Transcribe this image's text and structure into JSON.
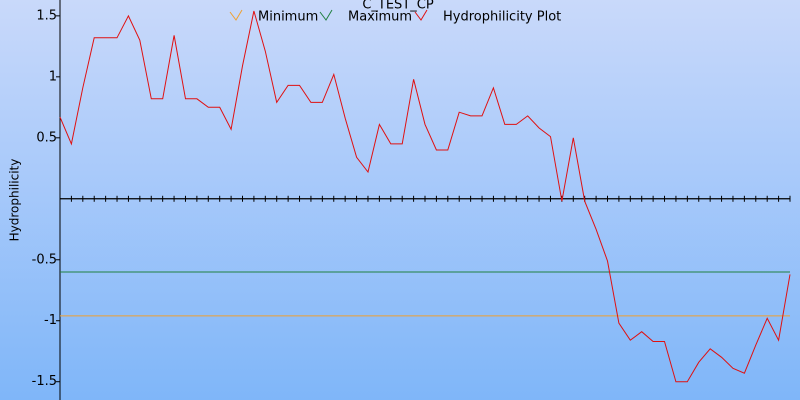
{
  "chart_data": {
    "type": "line",
    "title": "C_TEST_CP",
    "y_label": "Hydrophilicity",
    "categories": [
      null,
      null,
      null,
      null,
      null,
      null,
      null,
      null,
      null,
      null,
      null,
      null,
      null,
      null,
      null,
      null,
      null,
      null,
      null,
      null,
      null,
      null,
      null,
      null,
      null,
      null,
      null,
      null,
      null,
      null,
      null,
      null,
      null,
      null,
      null,
      null,
      null,
      null,
      null,
      null,
      null,
      null,
      null,
      null,
      null,
      null,
      null,
      null,
      null,
      null,
      null,
      null,
      null,
      null,
      null,
      null,
      null,
      null,
      null,
      null,
      null,
      null,
      null,
      null,
      null
    ],
    "series": [
      {
        "name": "Minimum",
        "color": "#f0a030",
        "values": [
          -0.96,
          -0.96,
          -0.96,
          -0.96,
          -0.96,
          -0.96,
          -0.96,
          -0.96,
          -0.96,
          -0.96,
          -0.96,
          -0.96,
          -0.96,
          -0.96,
          -0.96,
          -0.96,
          -0.96,
          -0.96,
          -0.96,
          -0.96,
          -0.96,
          -0.96,
          -0.96,
          -0.96,
          -0.96,
          -0.96,
          -0.96,
          -0.96,
          -0.96,
          -0.96,
          -0.96,
          -0.96,
          -0.96,
          -0.96,
          -0.96,
          -0.96,
          -0.96,
          -0.96,
          -0.96,
          -0.96,
          -0.96,
          -0.96,
          -0.96,
          -0.96,
          -0.96,
          -0.96,
          -0.96,
          -0.96,
          -0.96,
          -0.96,
          -0.96,
          -0.96,
          -0.96,
          -0.96,
          -0.96,
          -0.96,
          -0.96,
          -0.96,
          -0.96,
          -0.96,
          -0.96,
          -0.96,
          -0.96,
          -0.96,
          -0.96
        ]
      },
      {
        "name": "Maximum",
        "color": "#208040",
        "values": [
          -0.6,
          -0.6,
          -0.6,
          -0.6,
          -0.6,
          -0.6,
          -0.6,
          -0.6,
          -0.6,
          -0.6,
          -0.6,
          -0.6,
          -0.6,
          -0.6,
          -0.6,
          -0.6,
          -0.6,
          -0.6,
          -0.6,
          -0.6,
          -0.6,
          -0.6,
          -0.6,
          -0.6,
          -0.6,
          -0.6,
          -0.6,
          -0.6,
          -0.6,
          -0.6,
          -0.6,
          -0.6,
          -0.6,
          -0.6,
          -0.6,
          -0.6,
          -0.6,
          -0.6,
          -0.6,
          -0.6,
          -0.6,
          -0.6,
          -0.6,
          -0.6,
          -0.6,
          -0.6,
          -0.6,
          -0.6,
          -0.6,
          -0.6,
          -0.6,
          -0.6,
          -0.6,
          -0.6,
          -0.6,
          -0.6,
          -0.6,
          -0.6,
          -0.6,
          -0.6,
          -0.6,
          -0.6,
          -0.6,
          -0.6,
          -0.6
        ]
      },
      {
        "name": "Hydrophilicity Plot",
        "color": "#e01010",
        "values": [
          0.67,
          0.45,
          0.91,
          1.32,
          1.32,
          1.32,
          1.5,
          1.3,
          0.82,
          0.82,
          1.34,
          0.82,
          0.82,
          0.75,
          0.75,
          0.57,
          1.09,
          1.54,
          1.21,
          0.79,
          0.93,
          0.93,
          0.79,
          0.79,
          1.02,
          0.66,
          0.34,
          0.22,
          0.61,
          0.45,
          0.45,
          0.98,
          0.61,
          0.4,
          0.4,
          0.71,
          0.68,
          0.68,
          0.91,
          0.61,
          0.61,
          0.68,
          0.58,
          0.51,
          -0.02,
          0.5,
          -0.02,
          -0.25,
          -0.51,
          -1.02,
          -1.16,
          -1.09,
          -1.17,
          -1.17,
          -1.5,
          -1.5,
          -1.34,
          -1.23,
          -1.3,
          -1.39,
          -1.43,
          -1.2,
          -0.98,
          -1.16,
          -0.62
        ]
      }
    ],
    "ylim": [
      -1.65,
      1.63
    ],
    "yticks": [
      1.5,
      1,
      0.5,
      -0.5,
      -1,
      -1.5
    ]
  }
}
